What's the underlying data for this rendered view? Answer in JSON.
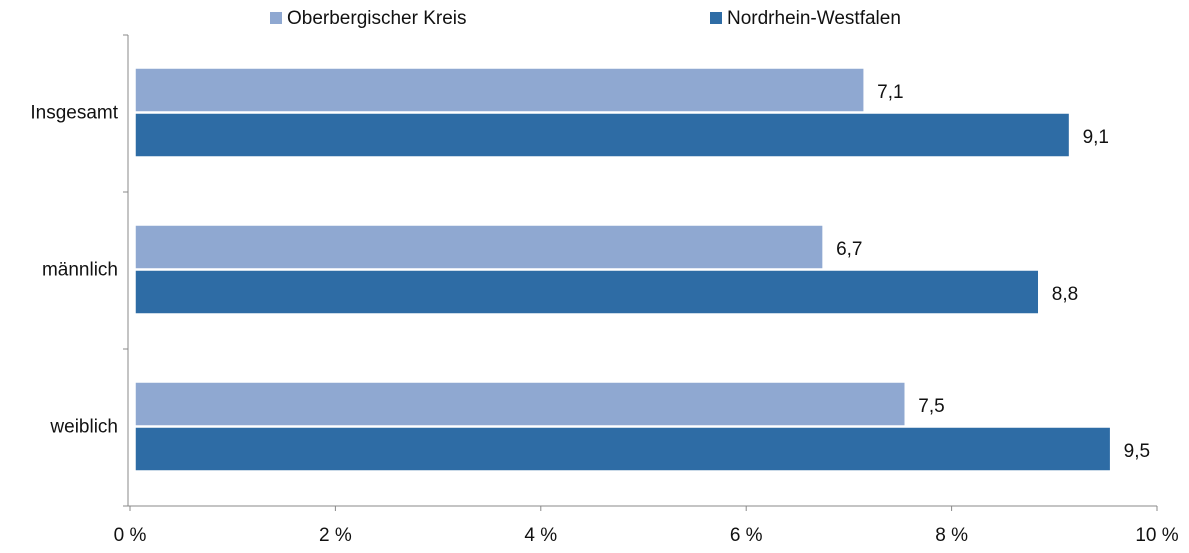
{
  "chart_data": {
    "type": "hbar",
    "categories": [
      "Insgesamt",
      "männlich",
      "weiblich"
    ],
    "series": [
      {
        "name": "Oberbergischer Kreis",
        "color": "#8fa8d1",
        "values": [
          7.1,
          6.7,
          7.5
        ],
        "value_labels": [
          "7,1",
          "6,7",
          "7,5"
        ]
      },
      {
        "name": "Nordrhein-Westfalen",
        "color": "#2e6ca5",
        "values": [
          9.1,
          8.8,
          9.5
        ],
        "value_labels": [
          "9,1",
          "8,8",
          "9,5"
        ]
      }
    ],
    "xlim": [
      0,
      10
    ],
    "xticks": [
      {
        "value": 0,
        "label": "0 %"
      },
      {
        "value": 2,
        "label": "2 %"
      },
      {
        "value": 4,
        "label": "4 %"
      },
      {
        "value": 6,
        "label": "6 %"
      },
      {
        "value": 8,
        "label": "8 %"
      },
      {
        "value": 10,
        "label": "10 %"
      }
    ],
    "legend": "top"
  }
}
